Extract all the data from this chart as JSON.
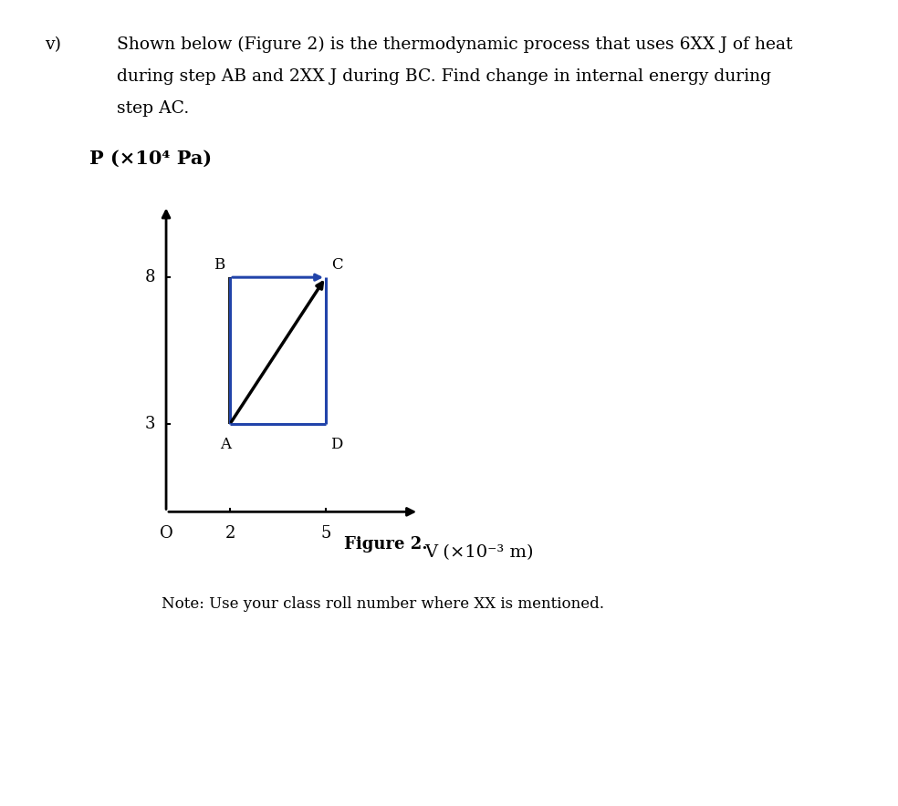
{
  "text_v": "v)",
  "question_text_line1": "Shown below (Figure 2) is the thermodynamic process that uses 6XX J of heat",
  "question_text_line2": "during step AB and 2XX J during BC. Find change in internal energy during",
  "question_text_line3": "step AC.",
  "ylabel": "P (×10⁴ Pa)",
  "xlabel": "V (×10⁻³ m)",
  "figure_caption": "Figure 2.",
  "note_text": "Note: Use your class roll number where XX is mentioned.",
  "points": {
    "A": [
      2,
      3
    ],
    "B": [
      2,
      8
    ],
    "C": [
      5,
      8
    ],
    "D": [
      5,
      3
    ]
  },
  "xlim": [
    0,
    9
  ],
  "ylim": [
    0,
    11
  ],
  "xticks": [
    0,
    2,
    5
  ],
  "yticks": [
    3,
    8
  ],
  "xtick_labels": [
    "O",
    "2",
    "5"
  ],
  "ytick_labels": [
    "3",
    "8"
  ],
  "rect_color": "#2244aa",
  "diag_color": "#000000",
  "bg_color": "#ffffff",
  "font_size_question": 13.5,
  "font_size_ylabel": 15,
  "font_size_xlabel": 14,
  "font_size_caption": 13,
  "font_size_note": 12,
  "font_size_tick": 13,
  "font_size_point_label": 12
}
